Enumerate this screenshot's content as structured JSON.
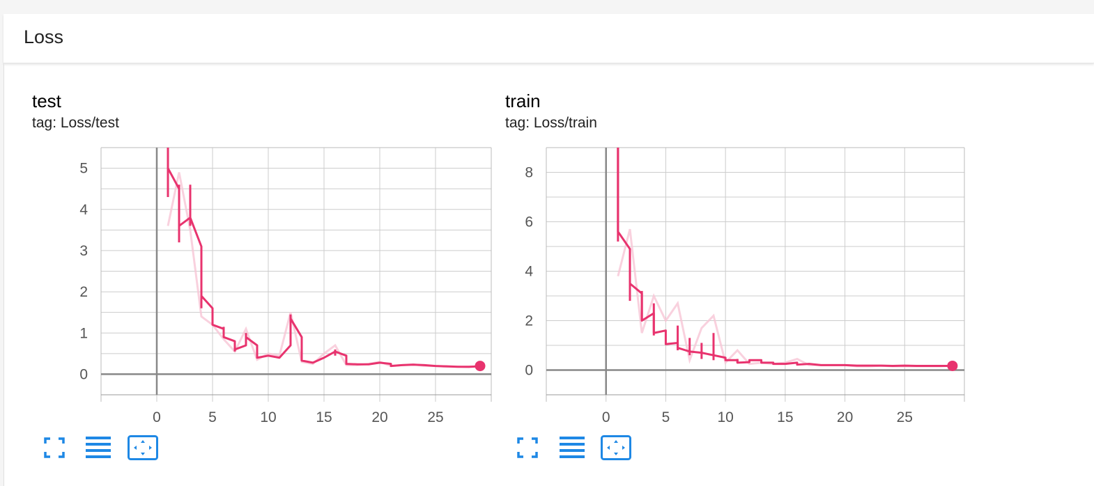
{
  "section": {
    "title": "Loss"
  },
  "colors": {
    "series": "#e8336e",
    "series_raw": "#f8c5d6",
    "grid": "#cccccc",
    "axis": "#888888",
    "icon": "#1e88e5"
  },
  "cards": [
    {
      "title": "test",
      "tag": "tag: Loss/test",
      "icons": [
        "fullscreen-icon",
        "legend-icon",
        "fit-domain-icon"
      ]
    },
    {
      "title": "train",
      "tag": "tag: Loss/train",
      "icons": [
        "fullscreen-icon",
        "legend-icon",
        "fit-domain-icon"
      ]
    }
  ],
  "chart_data": [
    {
      "type": "line",
      "title": "test",
      "subtitle": "tag: Loss/test",
      "xlabel": "",
      "ylabel": "",
      "xlim": [
        -5,
        30
      ],
      "ylim": [
        -0.5,
        5.5
      ],
      "x_ticks": [
        0,
        5,
        10,
        15,
        20,
        25
      ],
      "y_ticks": [
        0,
        1,
        2,
        3,
        4,
        5
      ],
      "grid": true,
      "series": [
        {
          "smoothed": [
            [
              1,
              6.2
            ],
            [
              1,
              5.0
            ],
            [
              2,
              4.5
            ],
            [
              2,
              3.6
            ],
            [
              3,
              3.8
            ],
            [
              4,
              3.1
            ],
            [
              4,
              1.9
            ],
            [
              5,
              1.6
            ],
            [
              5,
              1.2
            ],
            [
              6,
              1.1
            ],
            [
              6,
              0.9
            ],
            [
              7,
              0.8
            ],
            [
              7,
              0.6
            ],
            [
              8,
              0.7
            ],
            [
              8,
              0.9
            ],
            [
              9,
              0.7
            ],
            [
              9,
              0.4
            ],
            [
              10,
              0.45
            ],
            [
              11,
              0.4
            ],
            [
              12,
              0.7
            ],
            [
              12,
              1.35
            ],
            [
              13,
              0.9
            ],
            [
              13,
              0.33
            ],
            [
              14,
              0.28
            ],
            [
              15,
              0.4
            ],
            [
              16,
              0.55
            ],
            [
              17,
              0.45
            ],
            [
              17,
              0.25
            ],
            [
              18,
              0.24
            ],
            [
              19,
              0.24
            ],
            [
              20,
              0.28
            ],
            [
              21,
              0.25
            ],
            [
              21,
              0.2
            ],
            [
              22,
              0.22
            ],
            [
              23,
              0.23
            ],
            [
              24,
              0.22
            ],
            [
              25,
              0.2
            ],
            [
              26,
              0.19
            ],
            [
              27,
              0.18
            ],
            [
              28,
              0.18
            ],
            [
              29,
              0.19
            ]
          ],
          "raw": [
            [
              1,
              3.6
            ],
            [
              2,
              4.9
            ],
            [
              3,
              3.5
            ],
            [
              4,
              1.4
            ],
            [
              5,
              1.2
            ],
            [
              6,
              0.85
            ],
            [
              7,
              0.55
            ],
            [
              8,
              1.1
            ],
            [
              9,
              0.35
            ],
            [
              10,
              0.5
            ],
            [
              11,
              0.45
            ],
            [
              12,
              1.5
            ],
            [
              13,
              0.3
            ],
            [
              14,
              0.25
            ],
            [
              15,
              0.5
            ],
            [
              16,
              0.7
            ],
            [
              17,
              0.22
            ],
            [
              18,
              0.22
            ],
            [
              19,
              0.25
            ],
            [
              20,
              0.3
            ],
            [
              21,
              0.2
            ],
            [
              22,
              0.22
            ],
            [
              23,
              0.24
            ],
            [
              24,
              0.2
            ],
            [
              25,
              0.2
            ],
            [
              26,
              0.18
            ],
            [
              27,
              0.18
            ],
            [
              28,
              0.17
            ],
            [
              29,
              0.2
            ]
          ],
          "spikes": [
            [
              1,
              4.3,
              5.3
            ],
            [
              2,
              3.2,
              4.6
            ],
            [
              3,
              3.6,
              4.6
            ],
            [
              4,
              1.6,
              3.1
            ],
            [
              6,
              0.9,
              1.15
            ],
            [
              7,
              0.55,
              0.8
            ],
            [
              8,
              0.7,
              1.0
            ],
            [
              12,
              0.7,
              1.45
            ],
            [
              16,
              0.45,
              0.6
            ]
          ],
          "last_point": [
            29,
            0.2
          ]
        }
      ]
    },
    {
      "type": "line",
      "title": "train",
      "subtitle": "tag: Loss/train",
      "xlabel": "",
      "ylabel": "",
      "xlim": [
        -5,
        30
      ],
      "ylim": [
        -1,
        9
      ],
      "x_ticks": [
        0,
        5,
        10,
        15,
        20,
        25
      ],
      "y_ticks": [
        0,
        2,
        4,
        6,
        8
      ],
      "grid": true,
      "series": [
        {
          "smoothed": [
            [
              1,
              9.2
            ],
            [
              1,
              5.6
            ],
            [
              2,
              4.9
            ],
            [
              2,
              3.5
            ],
            [
              3,
              3.1
            ],
            [
              3,
              2.0
            ],
            [
              4,
              2.3
            ],
            [
              4,
              1.5
            ],
            [
              5,
              1.6
            ],
            [
              5,
              1.05
            ],
            [
              6,
              1.1
            ],
            [
              6,
              0.9
            ],
            [
              7,
              0.75
            ],
            [
              8,
              0.7
            ],
            [
              9,
              0.6
            ],
            [
              10,
              0.5
            ],
            [
              10,
              0.4
            ],
            [
              11,
              0.4
            ],
            [
              11,
              0.3
            ],
            [
              12,
              0.32
            ],
            [
              12,
              0.4
            ],
            [
              13,
              0.4
            ],
            [
              13,
              0.3
            ],
            [
              14,
              0.3
            ],
            [
              14,
              0.25
            ],
            [
              15,
              0.25
            ],
            [
              16,
              0.3
            ],
            [
              16,
              0.22
            ],
            [
              17,
              0.25
            ],
            [
              18,
              0.2
            ],
            [
              19,
              0.2
            ],
            [
              20,
              0.2
            ],
            [
              21,
              0.18
            ],
            [
              22,
              0.18
            ],
            [
              23,
              0.18
            ],
            [
              24,
              0.17
            ],
            [
              25,
              0.18
            ],
            [
              26,
              0.17
            ],
            [
              27,
              0.17
            ],
            [
              28,
              0.17
            ],
            [
              29,
              0.17
            ]
          ],
          "raw": [
            [
              1,
              3.8
            ],
            [
              2,
              5.7
            ],
            [
              3,
              1.5
            ],
            [
              4,
              3.0
            ],
            [
              5,
              2.0
            ],
            [
              6,
              2.7
            ],
            [
              7,
              0.4
            ],
            [
              8,
              1.7
            ],
            [
              9,
              2.2
            ],
            [
              10,
              0.3
            ],
            [
              11,
              0.8
            ],
            [
              12,
              0.25
            ],
            [
              13,
              0.3
            ],
            [
              14,
              0.25
            ],
            [
              15,
              0.3
            ],
            [
              16,
              0.45
            ],
            [
              17,
              0.2
            ],
            [
              18,
              0.2
            ],
            [
              19,
              0.2
            ],
            [
              20,
              0.2
            ],
            [
              21,
              0.15
            ],
            [
              22,
              0.15
            ],
            [
              23,
              0.18
            ],
            [
              24,
              0.15
            ],
            [
              25,
              0.15
            ],
            [
              26,
              0.15
            ],
            [
              27,
              0.15
            ],
            [
              28,
              0.15
            ],
            [
              29,
              0.18
            ]
          ],
          "spikes": [
            [
              1,
              5.2,
              9.2
            ],
            [
              2,
              2.8,
              3.6
            ],
            [
              3,
              2.0,
              3.2
            ],
            [
              4,
              1.4,
              2.7
            ],
            [
              6,
              0.8,
              1.8
            ],
            [
              7,
              0.6,
              1.3
            ],
            [
              8,
              0.45,
              1.1
            ],
            [
              9,
              0.4,
              1.5
            ],
            [
              11,
              0.3,
              0.45
            ]
          ],
          "last_point": [
            29,
            0.17
          ]
        }
      ]
    }
  ]
}
